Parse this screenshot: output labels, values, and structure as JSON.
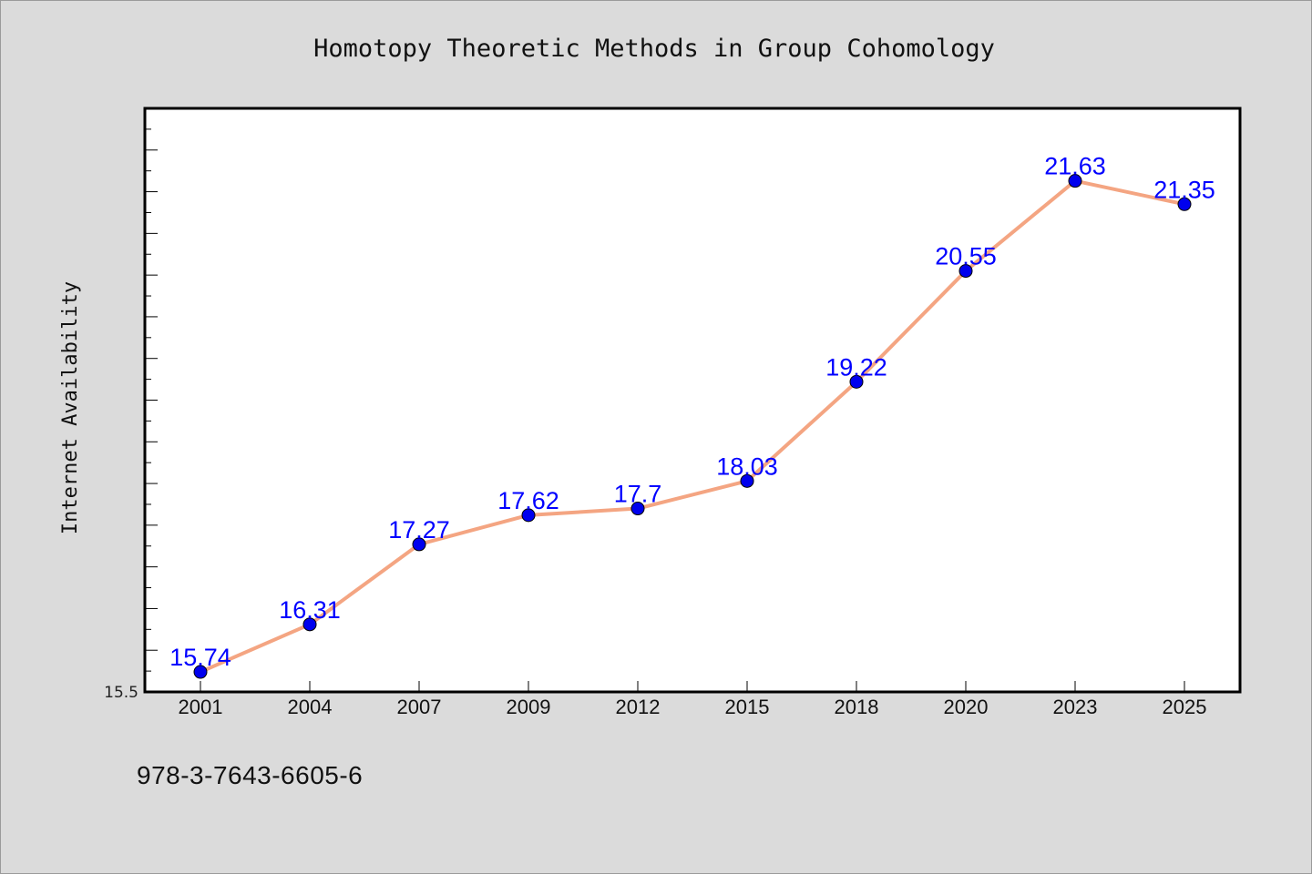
{
  "chart_data": {
    "type": "line",
    "title": "Homotopy Theoretic Methods in Group Cohomology",
    "xlabel": "",
    "ylabel": "Internet Availability",
    "categories": [
      "2001",
      "2004",
      "2007",
      "2009",
      "2012",
      "2015",
      "2018",
      "2020",
      "2023",
      "2025"
    ],
    "series": [
      {
        "values": [
          15.74,
          16.31,
          17.27,
          17.62,
          17.7,
          18.03,
          19.22,
          20.55,
          21.63,
          21.35
        ],
        "data_labels": [
          "15.74",
          "16.31",
          "17.27",
          "17.62",
          "17.7",
          "18.03",
          "19.22",
          "20.55",
          "21.63",
          "21.35"
        ]
      }
    ],
    "y_tick_label": "15.5",
    "ylim": [
      15.5,
      22.5
    ],
    "grid": false,
    "legend": "none",
    "colors": {
      "line": "#f4a582",
      "marker": "#0000ee",
      "data_label": "#0000ff",
      "plot_background": "#ffffff",
      "page_background": "#dbdbdb"
    }
  },
  "footer": {
    "code": "978-3-7643-6605-6"
  }
}
